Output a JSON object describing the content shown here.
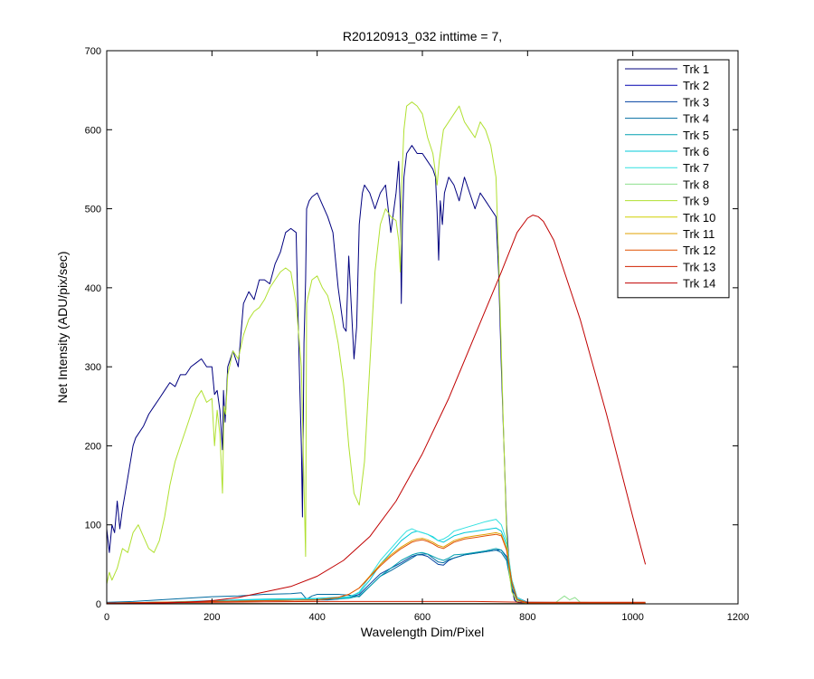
{
  "chart_data": {
    "type": "line",
    "title": "R20120913_032 inttime = 7,",
    "xlabel": "Wavelength Dim/Pixel",
    "ylabel": "Net Intensity (ADU/pix/sec)",
    "xlim": [
      0,
      1200
    ],
    "ylim": [
      0,
      700
    ],
    "xticks": [
      0,
      200,
      400,
      600,
      800,
      1000,
      1200
    ],
    "yticks": [
      0,
      100,
      200,
      300,
      400,
      500,
      600,
      700
    ],
    "grid": false,
    "legend_position": "top-right",
    "series": [
      {
        "name": "Trk 1",
        "color": "#00007f",
        "x": [
          0,
          5,
          10,
          15,
          20,
          25,
          30,
          35,
          40,
          45,
          50,
          55,
          60,
          70,
          80,
          90,
          100,
          110,
          120,
          130,
          140,
          150,
          160,
          170,
          180,
          190,
          200,
          205,
          210,
          215,
          220,
          222,
          225,
          230,
          240,
          250,
          260,
          270,
          280,
          290,
          300,
          310,
          320,
          330,
          340,
          350,
          360,
          366,
          370,
          372,
          375,
          378,
          380,
          385,
          390,
          400,
          410,
          420,
          430,
          440,
          450,
          455,
          460,
          470,
          475,
          480,
          483,
          486,
          490,
          500,
          510,
          520,
          530,
          540,
          550,
          555,
          558,
          560,
          562,
          565,
          570,
          580,
          590,
          600,
          610,
          620,
          625,
          628,
          631,
          634,
          638,
          642,
          650,
          660,
          670,
          680,
          690,
          700,
          710,
          720,
          730,
          740,
          745,
          750,
          755,
          760,
          765,
          770,
          775,
          780,
          790,
          800,
          850,
          900,
          950,
          1000,
          1024
        ],
        "y": [
          95,
          65,
          100,
          90,
          130,
          95,
          120,
          140,
          160,
          180,
          200,
          210,
          215,
          225,
          240,
          250,
          260,
          270,
          280,
          275,
          290,
          290,
          300,
          305,
          310,
          300,
          300,
          265,
          270,
          245,
          195,
          270,
          230,
          300,
          320,
          300,
          380,
          395,
          385,
          410,
          410,
          405,
          430,
          445,
          470,
          475,
          470,
          300,
          200,
          110,
          330,
          410,
          500,
          510,
          515,
          520,
          505,
          490,
          470,
          400,
          350,
          345,
          440,
          310,
          350,
          480,
          500,
          520,
          530,
          520,
          500,
          520,
          530,
          470,
          520,
          560,
          500,
          380,
          480,
          540,
          570,
          580,
          570,
          570,
          560,
          550,
          540,
          495,
          435,
          510,
          480,
          520,
          540,
          530,
          510,
          540,
          520,
          500,
          520,
          510,
          500,
          490,
          420,
          300,
          200,
          100,
          50,
          20,
          5,
          2,
          1,
          1,
          0,
          0,
          0,
          0,
          0
        ]
      },
      {
        "name": "Trk 2",
        "color": "#0000af",
        "x": [
          0,
          1024
        ],
        "y": [
          0.5,
          0.5
        ]
      },
      {
        "name": "Trk 3",
        "color": "#0040a0",
        "x": [
          0,
          100,
          200,
          300,
          350,
          400,
          420,
          440,
          460,
          480,
          500,
          520,
          540,
          560,
          580,
          590,
          600,
          610,
          620,
          630,
          640,
          650,
          660,
          680,
          700,
          720,
          740,
          750,
          760,
          770,
          780,
          800,
          1024
        ],
        "y": [
          1,
          2,
          3,
          5,
          5,
          5,
          5,
          6,
          8,
          12,
          25,
          38,
          45,
          52,
          60,
          62,
          62,
          60,
          55,
          50,
          49,
          55,
          58,
          62,
          64,
          66,
          68,
          68,
          60,
          30,
          8,
          2,
          1
        ]
      },
      {
        "name": "Trk 4",
        "color": "#006ba0",
        "x": [
          0,
          50,
          100,
          150,
          200,
          250,
          300,
          350,
          370,
          380,
          390,
          400,
          420,
          440,
          460,
          470,
          480,
          500,
          520,
          540,
          560,
          580,
          590,
          600,
          610,
          620,
          630,
          640,
          650,
          660,
          680,
          700,
          720,
          740,
          750,
          760,
          770,
          780,
          800,
          1024
        ],
        "y": [
          2,
          3,
          5,
          7,
          9,
          10,
          12,
          13,
          14,
          6,
          10,
          12,
          12,
          12,
          11,
          10,
          9,
          22,
          35,
          42,
          50,
          58,
          62,
          63,
          63,
          58,
          53,
          52,
          56,
          58,
          62,
          64,
          66,
          68,
          65,
          55,
          20,
          5,
          1,
          1
        ]
      },
      {
        "name": "Trk 5",
        "color": "#00a0b0",
        "x": [
          0,
          100,
          200,
          300,
          400,
          460,
          480,
          500,
          520,
          540,
          560,
          580,
          590,
          600,
          610,
          620,
          630,
          640,
          650,
          660,
          680,
          700,
          720,
          740,
          750,
          760,
          770,
          780,
          800,
          1024
        ],
        "y": [
          1,
          2,
          3,
          4,
          5,
          7,
          10,
          22,
          35,
          45,
          55,
          62,
          64,
          65,
          63,
          60,
          57,
          55,
          58,
          62,
          63,
          65,
          67,
          70,
          68,
          58,
          25,
          6,
          1,
          1
        ]
      },
      {
        "name": "Trk 6",
        "color": "#00c8d8",
        "x": [
          0,
          100,
          200,
          300,
          400,
          460,
          480,
          500,
          520,
          540,
          560,
          580,
          590,
          600,
          610,
          620,
          630,
          640,
          650,
          660,
          680,
          700,
          720,
          740,
          750,
          760,
          770,
          780,
          800,
          1024
        ],
        "y": [
          1,
          2,
          4,
          6,
          7,
          9,
          14,
          30,
          50,
          65,
          80,
          90,
          92,
          90,
          88,
          85,
          80,
          78,
          82,
          86,
          90,
          92,
          94,
          96,
          92,
          75,
          30,
          8,
          1,
          1
        ]
      },
      {
        "name": "Trk 7",
        "color": "#30e0e0",
        "x": [
          0,
          100,
          200,
          300,
          400,
          460,
          480,
          500,
          520,
          540,
          560,
          570,
          580,
          590,
          600,
          610,
          620,
          630,
          640,
          650,
          660,
          680,
          700,
          720,
          740,
          750,
          760,
          770,
          780,
          800,
          1024
        ],
        "y": [
          1,
          2,
          3,
          5,
          6,
          8,
          15,
          35,
          55,
          70,
          85,
          92,
          95,
          92,
          90,
          88,
          84,
          80,
          82,
          86,
          92,
          96,
          100,
          104,
          107,
          100,
          80,
          30,
          8,
          1,
          1
        ]
      },
      {
        "name": "Trk 8",
        "color": "#8ee08e",
        "x": [
          0,
          200,
          400,
          600,
          800,
          850,
          860,
          870,
          880,
          890,
          900,
          1024
        ],
        "y": [
          0,
          0,
          0,
          0,
          0,
          0,
          5,
          10,
          5,
          8,
          2,
          0
        ]
      },
      {
        "name": "Trk 9",
        "color": "#b0e030",
        "x": [
          0,
          5,
          10,
          20,
          30,
          40,
          50,
          60,
          70,
          80,
          90,
          100,
          110,
          120,
          130,
          140,
          150,
          160,
          170,
          180,
          190,
          200,
          205,
          210,
          215,
          220,
          223,
          226,
          230,
          240,
          250,
          260,
          270,
          280,
          290,
          300,
          310,
          320,
          330,
          340,
          350,
          360,
          370,
          375,
          378,
          380,
          390,
          400,
          410,
          420,
          430,
          440,
          450,
          460,
          470,
          480,
          490,
          500,
          510,
          520,
          530,
          540,
          550,
          555,
          558,
          560,
          565,
          570,
          580,
          590,
          600,
          610,
          620,
          628,
          632,
          640,
          650,
          660,
          670,
          680,
          690,
          700,
          710,
          720,
          730,
          740,
          745,
          750,
          755,
          760,
          765,
          770,
          780,
          800,
          1024
        ],
        "y": [
          25,
          40,
          30,
          45,
          70,
          65,
          90,
          100,
          85,
          70,
          65,
          80,
          110,
          150,
          180,
          200,
          220,
          240,
          260,
          270,
          255,
          260,
          200,
          245,
          215,
          140,
          250,
          240,
          290,
          320,
          310,
          340,
          360,
          370,
          375,
          385,
          400,
          410,
          420,
          425,
          420,
          380,
          300,
          150,
          60,
          380,
          410,
          415,
          400,
          390,
          365,
          330,
          280,
          200,
          140,
          125,
          180,
          300,
          420,
          480,
          500,
          490,
          485,
          460,
          420,
          520,
          600,
          630,
          635,
          630,
          620,
          590,
          570,
          530,
          560,
          600,
          610,
          620,
          630,
          610,
          600,
          590,
          610,
          600,
          580,
          540,
          440,
          320,
          200,
          90,
          40,
          15,
          3,
          1,
          0
        ]
      },
      {
        "name": "Trk 10",
        "color": "#d0d000",
        "x": [
          0,
          1024
        ],
        "y": [
          0.3,
          0.3
        ]
      },
      {
        "name": "Trk 11",
        "color": "#e0a000",
        "x": [
          0,
          100,
          200,
          300,
          400,
          440,
          460,
          480,
          500,
          520,
          540,
          560,
          580,
          590,
          600,
          610,
          620,
          630,
          640,
          650,
          660,
          680,
          700,
          720,
          740,
          750,
          760,
          770,
          780,
          800,
          1024
        ],
        "y": [
          1,
          2,
          3,
          4,
          5,
          8,
          12,
          20,
          35,
          50,
          62,
          72,
          80,
          82,
          83,
          81,
          78,
          74,
          72,
          76,
          80,
          84,
          86,
          88,
          90,
          88,
          70,
          28,
          6,
          1,
          1
        ]
      },
      {
        "name": "Trk 12",
        "color": "#e05000",
        "x": [
          0,
          100,
          200,
          300,
          400,
          440,
          460,
          480,
          500,
          520,
          540,
          560,
          580,
          590,
          600,
          610,
          620,
          630,
          640,
          650,
          660,
          680,
          700,
          720,
          740,
          750,
          760,
          770,
          780,
          800,
          1024
        ],
        "y": [
          1,
          2,
          3,
          4,
          5,
          8,
          12,
          20,
          34,
          48,
          60,
          70,
          78,
          80,
          81,
          79,
          76,
          72,
          70,
          74,
          78,
          82,
          84,
          86,
          88,
          86,
          68,
          27,
          6,
          1,
          1
        ]
      },
      {
        "name": "Trk 13",
        "color": "#d02000",
        "x": [
          0,
          100,
          200,
          300,
          400,
          500,
          600,
          700,
          800,
          1024
        ],
        "y": [
          1,
          1.5,
          2,
          2.5,
          3,
          3,
          3,
          3,
          2,
          2
        ]
      },
      {
        "name": "Trk 14",
        "color": "#c00000",
        "x": [
          0,
          50,
          100,
          150,
          200,
          250,
          300,
          350,
          400,
          450,
          500,
          550,
          600,
          650,
          700,
          750,
          780,
          800,
          810,
          820,
          830,
          850,
          900,
          950,
          1000,
          1024
        ],
        "y": [
          0,
          0.5,
          1,
          2,
          4,
          8,
          15,
          22,
          35,
          55,
          85,
          130,
          190,
          260,
          340,
          420,
          470,
          488,
          492,
          490,
          484,
          460,
          360,
          240,
          110,
          50
        ]
      }
    ]
  }
}
